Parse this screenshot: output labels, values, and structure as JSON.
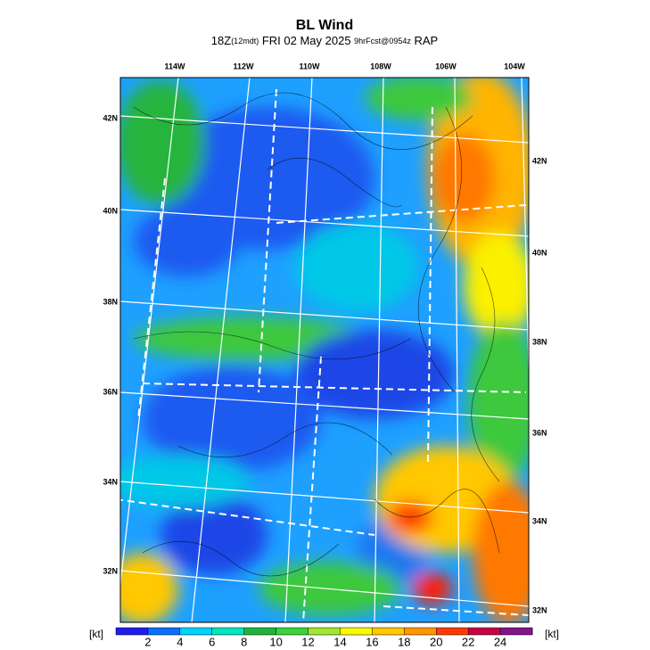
{
  "header": {
    "title": "BL Wind",
    "subtitle": [
      "18Z",
      "(12mdt)",
      "FRI 02 May 2025",
      "9hrFcst@0954z",
      "RAP"
    ]
  },
  "map": {
    "lon_labels": [
      "114W",
      "112W",
      "110W",
      "108W",
      "106W",
      "104W"
    ],
    "lat_labels_left": [
      "42N",
      "40N",
      "38N",
      "36N",
      "34N",
      "32N"
    ],
    "lat_labels_right": [
      "42N",
      "40N",
      "38N",
      "36N",
      "34N",
      "32N"
    ]
  },
  "colorbar": {
    "unit_left": "[kt]",
    "unit_right": "[kt]",
    "range": [
      0,
      26
    ],
    "ticks": [
      2,
      4,
      6,
      8,
      10,
      12,
      14,
      16,
      18,
      20,
      22,
      24
    ],
    "colors": [
      "#1e1ef0",
      "#0a6eff",
      "#00d2ff",
      "#00e6c0",
      "#1eb43c",
      "#3cd23c",
      "#a0e632",
      "#fafa00",
      "#ffc800",
      "#ff9600",
      "#ff3c00",
      "#c80046",
      "#82148c"
    ]
  }
}
